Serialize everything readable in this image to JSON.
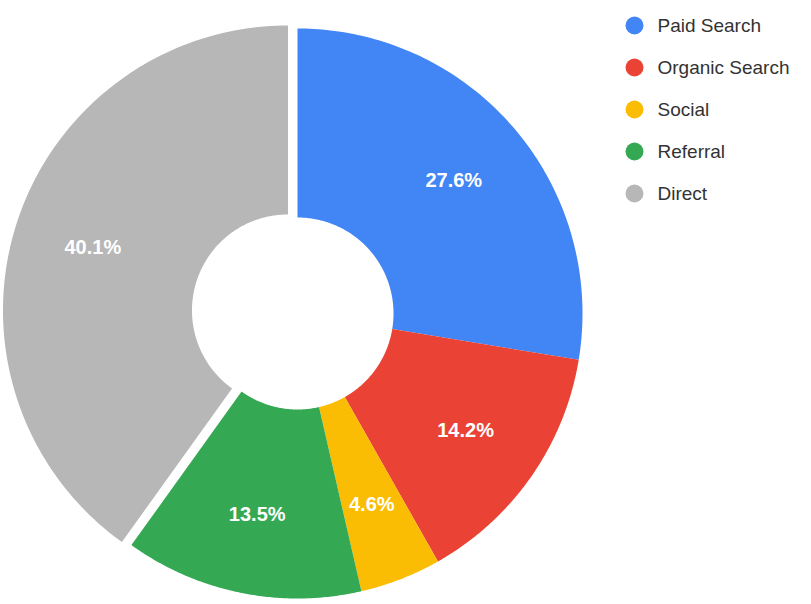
{
  "chart_data": {
    "type": "donut",
    "categories": [
      "Paid Search",
      "Organic Search",
      "Social",
      "Referral",
      "Direct"
    ],
    "values": [
      27.6,
      14.2,
      4.6,
      13.5,
      40.1
    ],
    "value_labels": [
      "27.6%",
      "14.2%",
      "4.6%",
      "13.5%",
      "40.1%"
    ],
    "colors": [
      "#4285f4",
      "#ea4335",
      "#fbbc04",
      "#34a853",
      "#b7b7b7"
    ],
    "data_labels": true,
    "legend": "top-right"
  }
}
